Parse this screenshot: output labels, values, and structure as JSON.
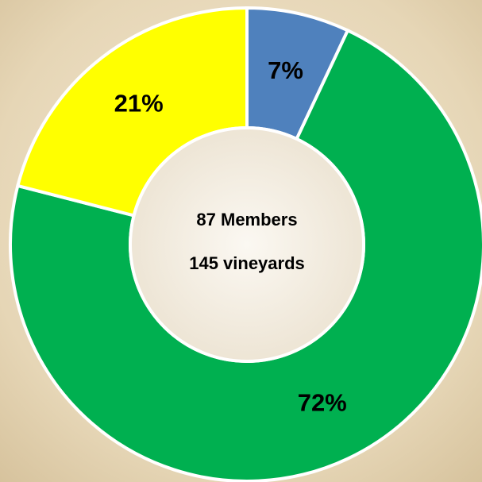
{
  "chart_data": {
    "type": "donut",
    "values": [
      7,
      72,
      21
    ],
    "value_labels": [
      "7%",
      "72%",
      "21%"
    ],
    "colors": [
      "#4f81bd",
      "#00b050",
      "#ffff00"
    ],
    "center_labels": [
      "87 Members",
      "145 vineyards"
    ]
  }
}
